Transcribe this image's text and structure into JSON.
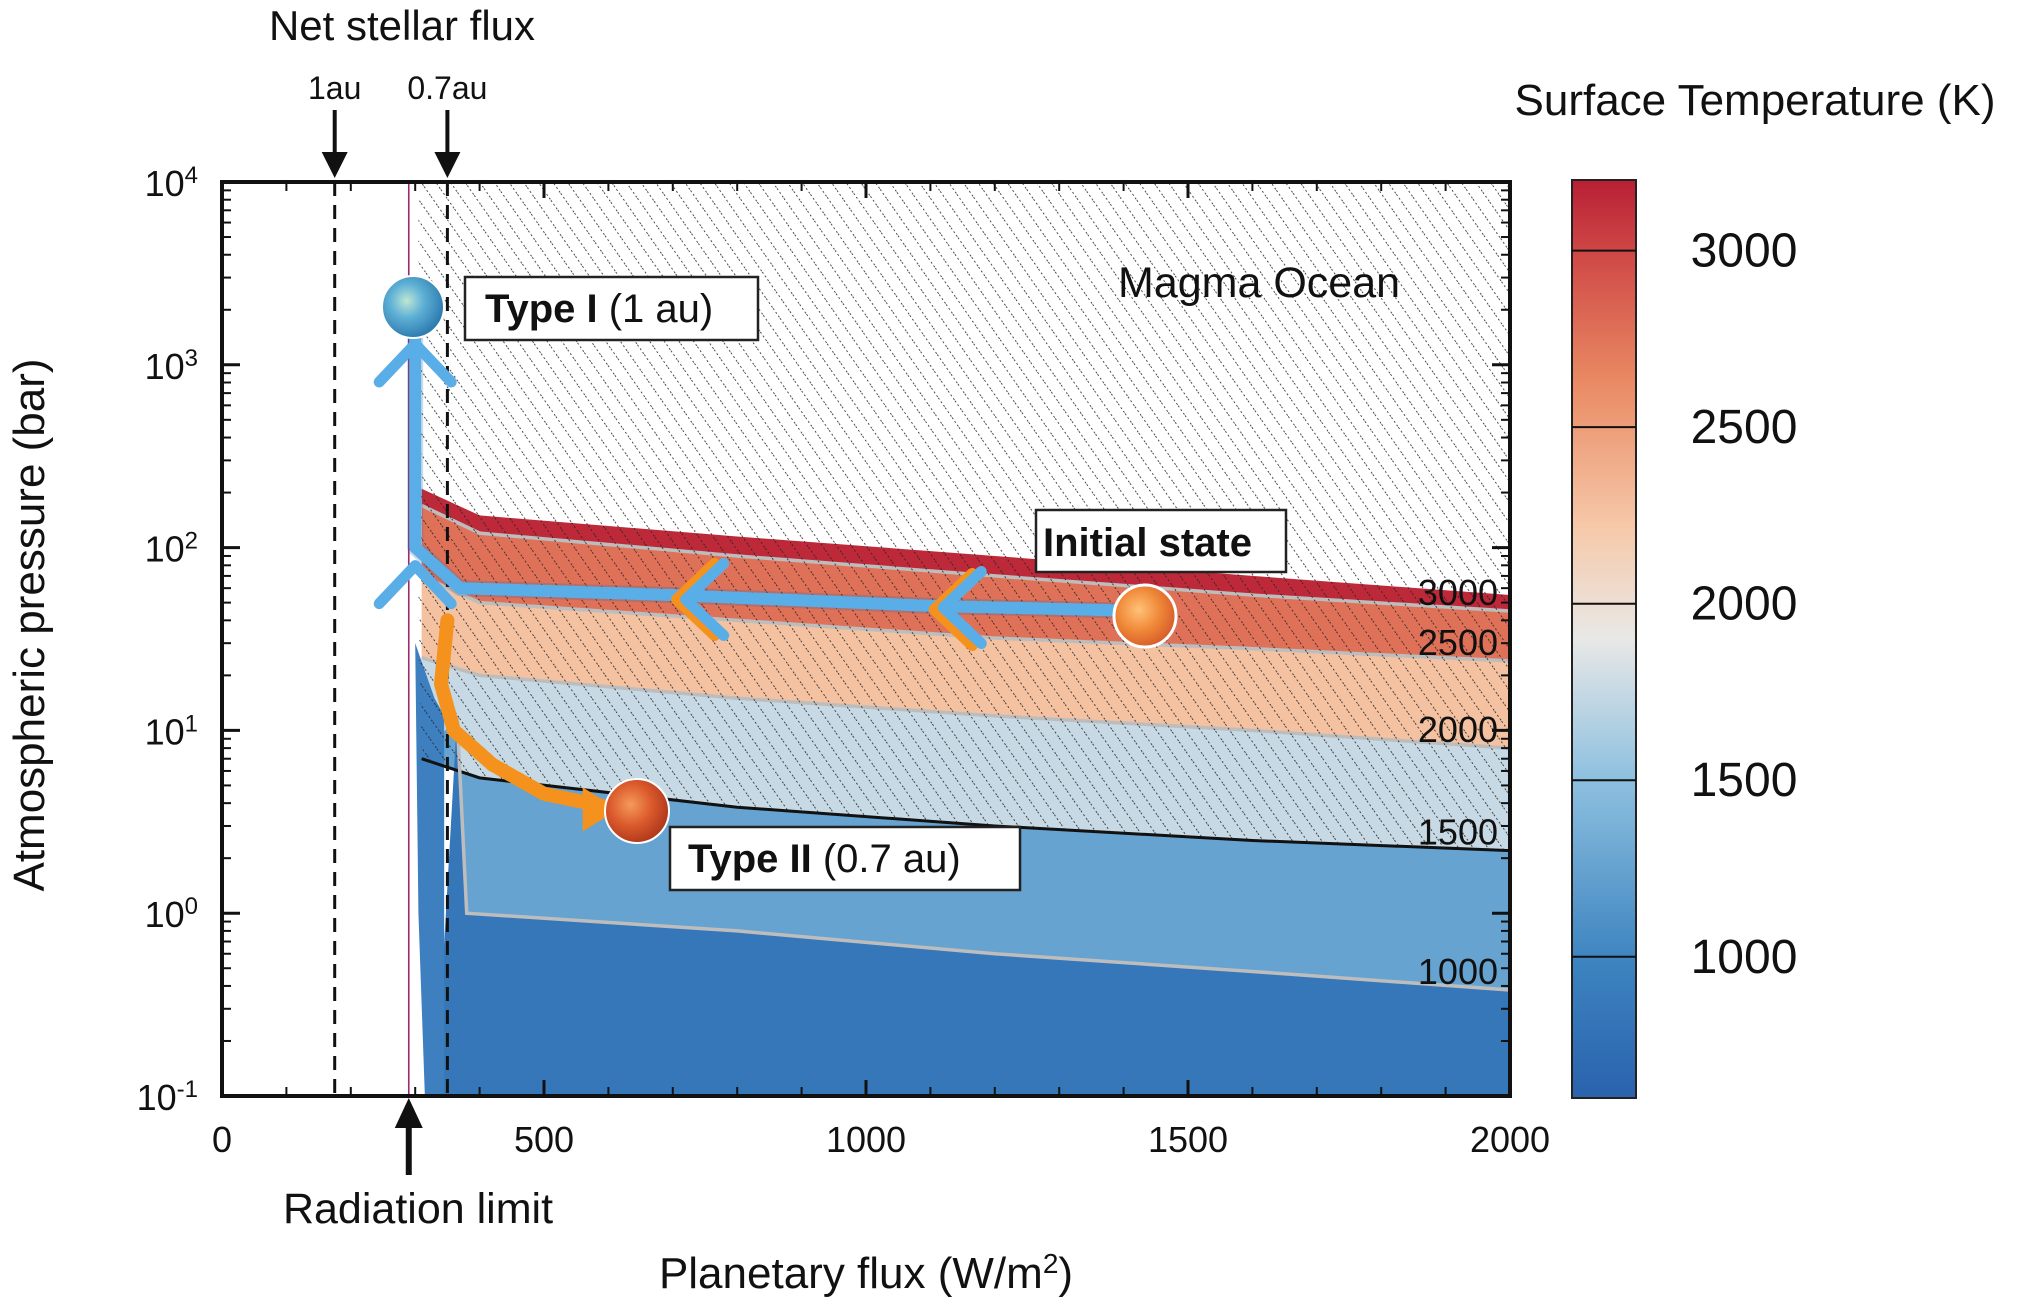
{
  "chart_data": {
    "type": "heatmap",
    "title": "",
    "xlabel": "Planetary flux (W/m²)",
    "ylabel": "Atmospheric pressure (bar)",
    "xlim": [
      0,
      2000
    ],
    "ylim": [
      0.1,
      10000
    ],
    "yscale": "log",
    "x_ticks": [
      0,
      500,
      1000,
      1500,
      2000
    ],
    "x_tick_labels": [
      "0",
      "500",
      "1000",
      "1500",
      "2000"
    ],
    "y_ticks": [
      0.1,
      1,
      10,
      100,
      1000,
      10000
    ],
    "y_tick_bases": [
      "10",
      "10",
      "10",
      "10",
      "10",
      "10"
    ],
    "y_tick_exponents": [
      "-1",
      "0",
      "1",
      "2",
      "3",
      "4"
    ],
    "colorbar": {
      "title": "Surface Temperature (K)",
      "range": [
        600,
        3200
      ],
      "ticks": [
        1000,
        1500,
        2000,
        2500,
        3000
      ],
      "tick_labels": [
        "1000",
        "1500",
        "2000",
        "2500",
        "3000"
      ]
    },
    "radiation_limit_flux": 290,
    "radiation_limit_label": "Radiation limit",
    "net_stellar_flux_label": "Net stellar flux",
    "stellar_markers": [
      {
        "label": "1au",
        "flux": 175
      },
      {
        "label": "0.7au",
        "flux": 350
      }
    ],
    "contours": [
      {
        "label": "3000",
        "x": [
          310,
          400,
          800,
          1200,
          1600,
          2000
        ],
        "p": [
          170,
          120,
          90,
          70,
          55,
          45
        ]
      },
      {
        "label": "2500",
        "x": [
          310,
          400,
          800,
          1200,
          1600,
          2000
        ],
        "p": [
          70,
          50,
          40,
          32,
          28,
          24
        ]
      },
      {
        "label": "2000",
        "x": [
          310,
          400,
          800,
          1200,
          1600,
          2000
        ],
        "p": [
          25,
          20,
          15,
          12,
          10,
          8
        ]
      },
      {
        "label": "1500",
        "x": [
          310,
          400,
          800,
          1200,
          1600,
          2000
        ],
        "p": [
          7,
          5.5,
          3.8,
          3.0,
          2.5,
          2.2
        ]
      },
      {
        "label": "1000",
        "x": [
          365,
          380,
          800,
          1200,
          1600,
          2000
        ],
        "p": [
          12,
          1.0,
          0.8,
          0.6,
          0.48,
          0.38
        ]
      }
    ],
    "annotations": {
      "magma_ocean": "Magma Ocean",
      "initial_state": "Initial state",
      "type1_bold": "Type I",
      "type1_rest": " (1 au)",
      "type2_bold": "Type II",
      "type2_rest": " (0.7 au)"
    },
    "paths": [
      {
        "name": "Type I (1 au)",
        "color": "#5aaee8",
        "x": [
          1430,
          1100,
          700,
          370,
          300,
          300
        ],
        "p": [
          45,
          48,
          55,
          60,
          100,
          2000
        ]
      },
      {
        "name": "Type II (0.7 au)",
        "color": "#f5921e",
        "x": [
          350,
          340,
          360,
          420,
          500,
          600
        ],
        "p": [
          40,
          18,
          10,
          6.5,
          4.5,
          3.8
        ]
      }
    ],
    "points": [
      {
        "label": "Initial state",
        "flux": 1430,
        "p": 40
      },
      {
        "label": "Type I endpoint",
        "flux": 300,
        "p": 2000
      },
      {
        "label": "Type II endpoint",
        "flux": 650,
        "p": 3.7
      }
    ]
  }
}
